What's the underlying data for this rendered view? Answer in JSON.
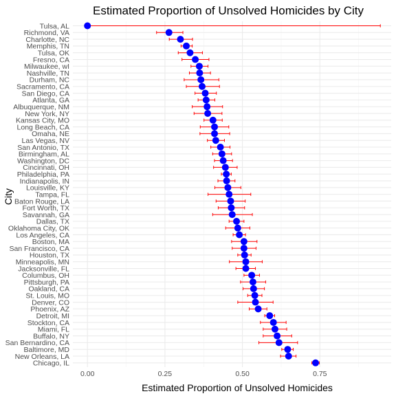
{
  "chart_data": {
    "type": "scatter",
    "title": "Estimated Proportion of Unsolved Homicides by City",
    "xlabel": "Estimated Proportion of Unsolved Homicides",
    "ylabel": "City",
    "xlim": [
      -0.047,
      0.98
    ],
    "xticks": [
      0.0,
      0.25,
      0.5,
      0.75
    ],
    "xtick_labels": [
      "0.00",
      "0.25",
      "0.50",
      "0.75"
    ],
    "grid": true,
    "point_color": "#0000ff",
    "errorbar_color": "#ff0000",
    "cities": [
      "Tulsa, AL",
      "Richmond, VA",
      "Charlotte, NC",
      "Memphis, TN",
      "Tulsa, OK",
      "Fresno, CA",
      "Milwaukee, wI",
      "Nashville, TN",
      "Durham, NC",
      "Sacramento, CA",
      "San Diego, CA",
      "Atlanta, GA",
      "Albuquerque, NM",
      "New York, NY",
      "Kansas City, MO",
      "Long Beach, CA",
      "Omaha, NE",
      "Las Vegas, NV",
      "San Antonio, TX",
      "Birmingham, AL",
      "Washington, DC",
      "Cincinnati, OH",
      "Philadelphia, PA",
      "Indianapolis, IN",
      "Louisville, KY",
      "Tampa, FL",
      "Baton Rouge, LA",
      "Fort Worth, TX",
      "Savannah, GA",
      "Dallas, TX",
      "Oklahoma City, OK",
      "Los Angeles, CA",
      "Boston, MA",
      "San Francisco, CA",
      "Houston, TX",
      "Minneapolis, MN",
      "Jacksonville, FL",
      "Columbus, OH",
      "Pittsburgh, PA",
      "Oakland, CA",
      "St. Louis, MO",
      "Denver, CO",
      "Phoenix, AZ",
      "Detroit, MI",
      "Stockton, CA",
      "Miami, FL",
      "Buffalo, NY",
      "San Bernardino, CA",
      "Baltimore, MD",
      "New Orleans, LA",
      "Chicago, IL"
    ],
    "estimate": [
      0.0,
      0.263,
      0.3,
      0.319,
      0.331,
      0.348,
      0.361,
      0.362,
      0.366,
      0.37,
      0.38,
      0.383,
      0.386,
      0.388,
      0.405,
      0.41,
      0.41,
      0.414,
      0.429,
      0.434,
      0.438,
      0.445,
      0.448,
      0.449,
      0.453,
      0.457,
      0.462,
      0.464,
      0.467,
      0.481,
      0.485,
      0.49,
      0.505,
      0.505,
      0.507,
      0.511,
      0.511,
      0.53,
      0.534,
      0.536,
      0.54,
      0.542,
      0.551,
      0.588,
      0.6,
      0.605,
      0.612,
      0.618,
      0.646,
      0.649,
      0.736
    ],
    "conf_low": [
      0.0,
      0.223,
      0.264,
      0.302,
      0.293,
      0.305,
      0.334,
      0.329,
      0.312,
      0.319,
      0.347,
      0.357,
      0.338,
      0.344,
      0.376,
      0.364,
      0.363,
      0.387,
      0.398,
      0.404,
      0.41,
      0.407,
      0.432,
      0.421,
      0.411,
      0.389,
      0.415,
      0.422,
      0.404,
      0.457,
      0.446,
      0.47,
      0.465,
      0.467,
      0.485,
      0.458,
      0.479,
      0.505,
      0.494,
      0.502,
      0.517,
      0.485,
      0.522,
      0.572,
      0.558,
      0.567,
      0.567,
      0.553,
      0.627,
      0.623,
      0.724
    ],
    "conf_high": [
      0.945,
      0.308,
      0.339,
      0.338,
      0.371,
      0.392,
      0.389,
      0.397,
      0.424,
      0.426,
      0.416,
      0.411,
      0.436,
      0.434,
      0.435,
      0.456,
      0.459,
      0.442,
      0.46,
      0.465,
      0.468,
      0.483,
      0.464,
      0.476,
      0.495,
      0.527,
      0.509,
      0.507,
      0.532,
      0.505,
      0.524,
      0.51,
      0.547,
      0.544,
      0.528,
      0.564,
      0.542,
      0.555,
      0.575,
      0.571,
      0.563,
      0.599,
      0.579,
      0.604,
      0.641,
      0.643,
      0.659,
      0.678,
      0.664,
      0.673,
      0.748
    ]
  }
}
